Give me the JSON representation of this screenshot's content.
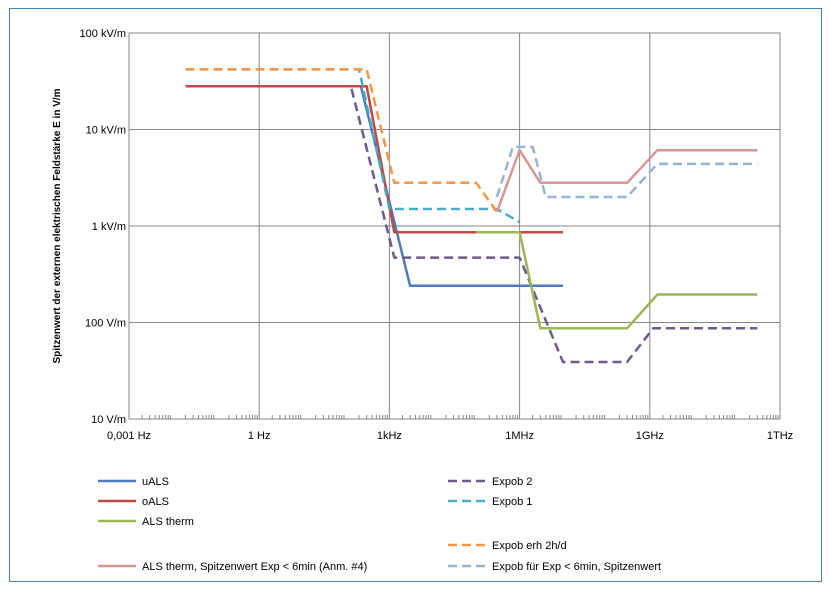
{
  "chart_data": {
    "type": "line",
    "ylabel": "Spitzenwert der externen elektrischen Feldstärke E in V/m",
    "x_scale": "log",
    "y_scale": "log",
    "xlim_hz": [
      0.001,
      1000000000000
    ],
    "ylim_vpm": [
      10,
      100000
    ],
    "x_ticks": [
      {
        "value": 0.001,
        "label": "0,001 Hz"
      },
      {
        "value": 1,
        "label": "1 Hz"
      },
      {
        "value": 1000,
        "label": "1kHz"
      },
      {
        "value": 1000000,
        "label": "1MHz"
      },
      {
        "value": 1000000000,
        "label": "1GHz"
      },
      {
        "value": 1000000000000,
        "label": "1THz"
      }
    ],
    "y_ticks": [
      {
        "value": 10,
        "label": "10 V/m"
      },
      {
        "value": 100,
        "label": "100 V/m"
      },
      {
        "value": 1000,
        "label": "1 kV/m"
      },
      {
        "value": 10000,
        "label": "10 kV/m"
      },
      {
        "value": 100000,
        "label": "100 kV/m"
      }
    ],
    "grid": true,
    "legend_position": "bottom",
    "series": [
      {
        "name": "uALS",
        "color": "#4a7ebb",
        "dash": "solid",
        "points": [
          [
            0.02,
            28000
          ],
          [
            220,
            28000
          ],
          [
            3000,
            240
          ],
          [
            10000000,
            240
          ]
        ]
      },
      {
        "name": "Expob 2",
        "color": "#71588f",
        "dash": "dashed",
        "points": [
          [
            0.02,
            28000
          ],
          [
            130,
            28000
          ],
          [
            1300,
            470
          ],
          [
            1000000,
            470
          ],
          [
            10000000,
            39
          ],
          [
            300000000,
            39
          ],
          [
            1200000000,
            87
          ],
          [
            300000000000,
            87
          ]
        ]
      },
      {
        "name": "oALS",
        "color": "#be4b48",
        "dash": "solid",
        "points": [
          [
            0.02,
            28000
          ],
          [
            300,
            28000
          ],
          [
            1300,
            860
          ],
          [
            10000000,
            860
          ]
        ]
      },
      {
        "name": "Expob 1",
        "color": "#4bacc6",
        "dash": "dashed",
        "points": [
          [
            0.02,
            42000
          ],
          [
            200,
            42000
          ],
          [
            1000,
            1500
          ],
          [
            300000,
            1500
          ],
          [
            1000000,
            1100
          ]
        ]
      },
      {
        "name": "ALS therm",
        "color": "#98b954",
        "dash": "solid",
        "points": [
          [
            100000,
            860
          ],
          [
            1000000,
            860
          ],
          [
            3000000,
            87
          ],
          [
            300000000,
            87
          ],
          [
            1500000000,
            195
          ],
          [
            300000000000,
            195
          ]
        ]
      },
      {
        "name": "Expob erh 2h/d",
        "color": "#f79646",
        "dash": "dashed",
        "points": [
          [
            0.02,
            42000
          ],
          [
            300,
            42000
          ],
          [
            1300,
            2800
          ],
          [
            100000,
            2800
          ],
          [
            300000,
            1400
          ]
        ]
      },
      {
        "name": "ALS therm, Spitzenwert Exp < 6min (Anm. #4)",
        "color": "#d99694",
        "dash": "solid",
        "points": [
          [
            300000,
            1400
          ],
          [
            1000000,
            6100
          ],
          [
            3000000,
            2800
          ],
          [
            300000000,
            2800
          ],
          [
            1500000000,
            6100
          ],
          [
            300000000000,
            6100
          ]
        ]
      },
      {
        "name": "Expob für Exp < 6min, Spitzenwert",
        "color": "#95b3d7",
        "dash": "dashed",
        "points": [
          [
            300000,
            2000
          ],
          [
            700000,
            6600
          ],
          [
            2000000,
            6600
          ],
          [
            4000000,
            2000
          ],
          [
            300000000,
            2000
          ],
          [
            1500000000,
            4400
          ],
          [
            300000000000,
            4400
          ]
        ]
      }
    ]
  }
}
